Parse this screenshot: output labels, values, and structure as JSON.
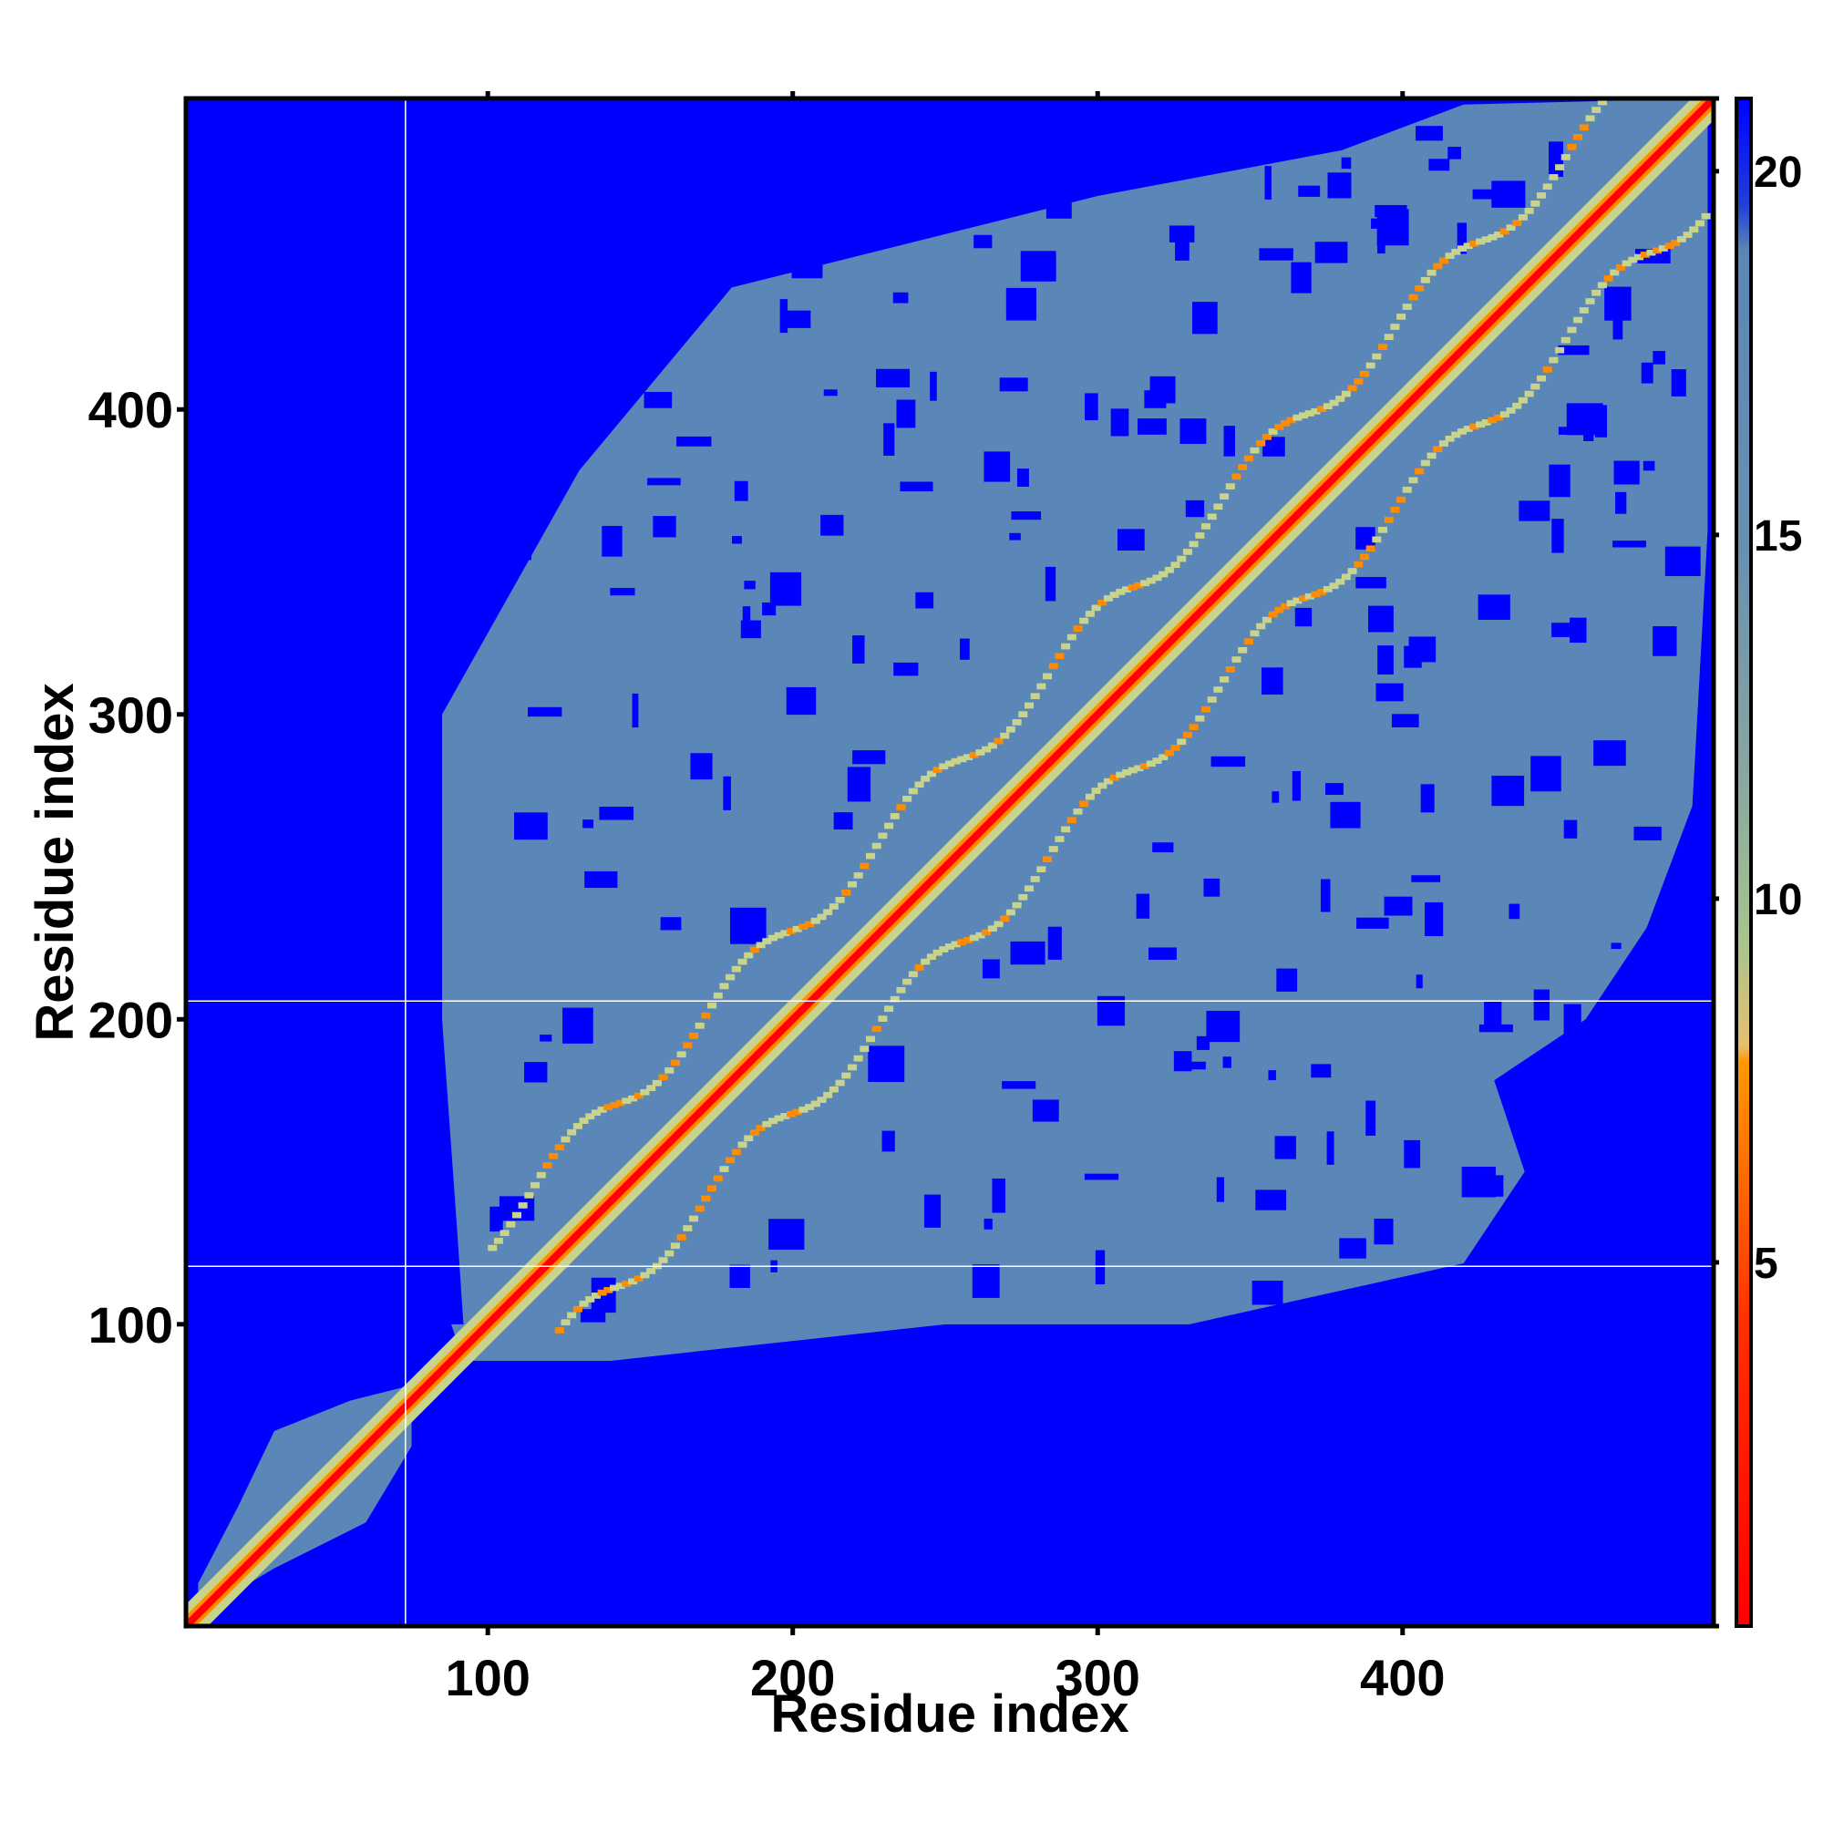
{
  "chart_data": {
    "type": "heatmap",
    "title": "",
    "xlabel": "Residue index",
    "ylabel": "Residue index",
    "xlim": [
      1,
      502
    ],
    "ylim": [
      1,
      502
    ],
    "x_ticks": [
      100,
      200,
      300,
      400
    ],
    "y_ticks": [
      100,
      200,
      300,
      400
    ],
    "colorbar": {
      "range": [
        0,
        21
      ],
      "ticks": [
        5,
        10,
        15,
        20
      ],
      "colors": {
        "low": "#ff0000",
        "mid_low": "#ff8c00",
        "mid": "#c8d48c",
        "high": "#5b87b8",
        "max": "#0000ff"
      }
    },
    "description_values": {
      "diagonal_distance": 0,
      "background_distance": 21,
      "compact_region_start_residue": 88,
      "n_terminal_domain_end_residue": 75
    },
    "guide_lines": {
      "vertical_x": [
        73
      ],
      "horizontal_y": [
        119,
        206
      ]
    }
  }
}
